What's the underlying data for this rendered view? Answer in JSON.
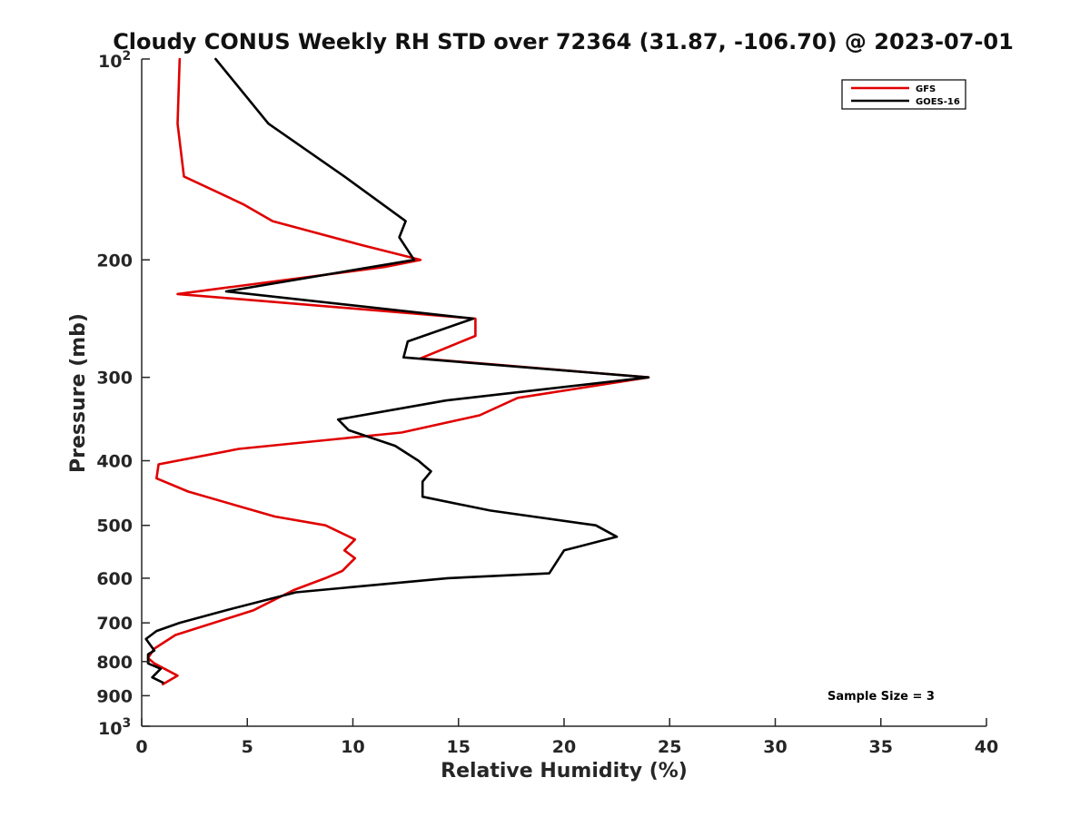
{
  "chart_data": {
    "type": "line",
    "title": "Cloudy CONUS Weekly RH STD over 72364 (31.87, -106.70) @ 2023-07-01",
    "xlabel": "Relative Humidity (%)",
    "ylabel": "Pressure (mb)",
    "xlim": [
      0,
      40
    ],
    "ylim": [
      100,
      1000
    ],
    "yscale": "log",
    "y_reversed": true,
    "x_ticks": [
      "0",
      "5",
      "10",
      "15",
      "20",
      "25",
      "30",
      "35",
      "40"
    ],
    "y_ticks": [
      {
        "value": 100,
        "label": "10",
        "sup": "2"
      },
      {
        "value": 200,
        "label": "200",
        "sup": ""
      },
      {
        "value": 300,
        "label": "300",
        "sup": ""
      },
      {
        "value": 400,
        "label": "400",
        "sup": ""
      },
      {
        "value": 500,
        "label": "500",
        "sup": ""
      },
      {
        "value": 600,
        "label": "600",
        "sup": ""
      },
      {
        "value": 700,
        "label": "700",
        "sup": ""
      },
      {
        "value": 800,
        "label": "800",
        "sup": ""
      },
      {
        "value": 900,
        "label": "900",
        "sup": ""
      },
      {
        "value": 1000,
        "label": "10",
        "sup": "3"
      }
    ],
    "grid": false,
    "legend": "top-right",
    "series": [
      {
        "name": "GFS",
        "color": "#e00000",
        "points": [
          [
            1.8,
            100
          ],
          [
            1.7,
            125
          ],
          [
            2.0,
            150
          ],
          [
            4.8,
            165
          ],
          [
            6.2,
            175
          ],
          [
            10.4,
            190
          ],
          [
            13.2,
            200
          ],
          [
            11.5,
            205
          ],
          [
            1.7,
            225
          ],
          [
            15.8,
            245
          ],
          [
            15.8,
            260
          ],
          [
            13.2,
            281
          ],
          [
            24.0,
            300
          ],
          [
            17.8,
            322
          ],
          [
            16.0,
            342
          ],
          [
            12.3,
            363
          ],
          [
            9.3,
            371
          ],
          [
            4.6,
            384
          ],
          [
            0.8,
            405
          ],
          [
            0.7,
            425
          ],
          [
            2.2,
            445
          ],
          [
            4.3,
            465
          ],
          [
            6.3,
            485
          ],
          [
            8.7,
            500
          ],
          [
            10.1,
            525
          ],
          [
            9.6,
            545
          ],
          [
            10.1,
            560
          ],
          [
            9.5,
            585
          ],
          [
            8.7,
            600
          ],
          [
            7.2,
            625
          ],
          [
            5.3,
            670
          ],
          [
            1.6,
            730
          ],
          [
            0.6,
            765
          ],
          [
            0.3,
            790
          ],
          [
            0.6,
            805
          ],
          [
            1.7,
            840
          ],
          [
            1.0,
            865
          ]
        ]
      },
      {
        "name": "GOES-16",
        "color": "#000000",
        "points": [
          [
            3.5,
            100
          ],
          [
            6.0,
            125
          ],
          [
            9.6,
            150
          ],
          [
            12.5,
            175
          ],
          [
            12.2,
            185
          ],
          [
            12.9,
            200
          ],
          [
            4.0,
            223
          ],
          [
            15.7,
            245
          ],
          [
            12.6,
            265
          ],
          [
            12.4,
            280
          ],
          [
            24.0,
            300
          ],
          [
            14.4,
            325
          ],
          [
            9.3,
            347
          ],
          [
            9.8,
            360
          ],
          [
            12.0,
            380
          ],
          [
            13.1,
            400
          ],
          [
            13.7,
            415
          ],
          [
            13.3,
            430
          ],
          [
            13.3,
            453
          ],
          [
            16.5,
            475
          ],
          [
            21.5,
            500
          ],
          [
            22.5,
            520
          ],
          [
            20.0,
            545
          ],
          [
            19.3,
            590
          ],
          [
            14.5,
            600
          ],
          [
            7.3,
            630
          ],
          [
            4.0,
            670
          ],
          [
            1.8,
            700
          ],
          [
            0.7,
            720
          ],
          [
            0.2,
            740
          ],
          [
            0.6,
            770
          ],
          [
            0.3,
            780
          ],
          [
            0.3,
            805
          ],
          [
            0.9,
            820
          ],
          [
            0.5,
            845
          ],
          [
            1.0,
            860
          ]
        ]
      }
    ],
    "annotations": [
      "Sample Size = 3"
    ]
  }
}
